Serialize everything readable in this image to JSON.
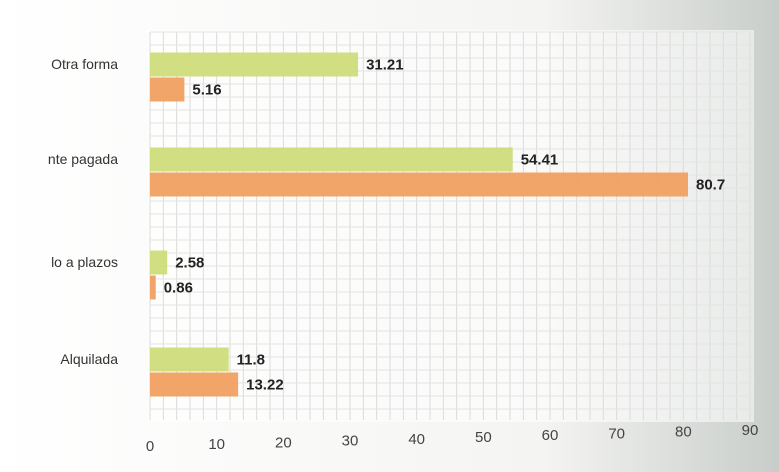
{
  "chart_data": {
    "type": "bar",
    "orientation": "horizontal",
    "categories": [
      "Otra forma",
      "nte pagada",
      "lo a plazos",
      "Alquilada"
    ],
    "series": [
      {
        "values": [
          31.21,
          54.41,
          2.58,
          11.8
        ],
        "color": "#cfdc7a"
      },
      {
        "values": [
          5.16,
          80.7,
          0.86,
          13.22
        ],
        "color": "#f0a060"
      }
    ],
    "xlim": [
      0,
      90
    ],
    "x_ticks": [
      "0",
      "10",
      "20",
      "30",
      "40",
      "50",
      "60",
      "70",
      "80",
      "90"
    ],
    "grid": true,
    "legend": "none"
  }
}
